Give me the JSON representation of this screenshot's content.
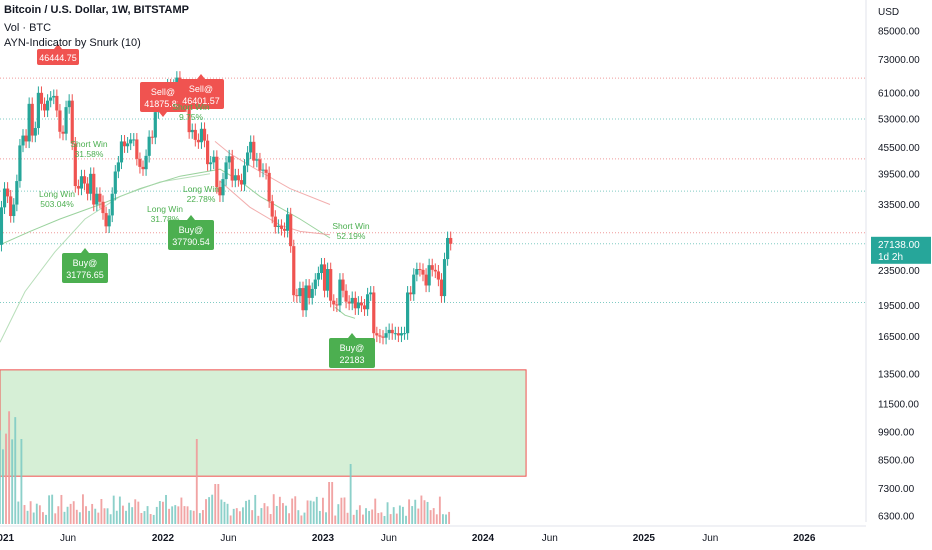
{
  "header": {
    "symbol_line": "Bitcoin / U.S. Dollar, 1W, BITSTAMP",
    "volume_line": "Vol · BTC",
    "indicator_line": "AYN-Indicator by Snurk (10)"
  },
  "colors": {
    "up": "#26a69a",
    "down": "#ef5350",
    "buy_label": "#4caf50",
    "sell_label": "#f05350",
    "win_text": "#4caf50",
    "zone_fill": "#d6efd6",
    "zone_border": "#ef5350",
    "price_badge": "#26a69a"
  },
  "price_axis": {
    "unit": "USD",
    "ticks": [
      "85000.00",
      "73000.00",
      "61000.00",
      "53000.00",
      "45500.00",
      "39500.00",
      "33500.00",
      "23500.00",
      "19500.00",
      "16500.00",
      "13500.00",
      "11500.00",
      "9900.00",
      "8500.00",
      "7300.00",
      "6300.00"
    ],
    "current_price": "27138.00",
    "countdown": "1d 2h"
  },
  "time_axis": {
    "labels": [
      "2021",
      "Jun",
      "2022",
      "Jun",
      "2023",
      "Jun",
      "2024",
      "Jun",
      "2025",
      "Jun",
      "2026"
    ]
  },
  "signals": [
    {
      "kind": "sell",
      "text": "46444.75"
    },
    {
      "kind": "sell",
      "text": "Sell@\n41875.81"
    },
    {
      "kind": "sell",
      "text": "Sell@\n46401.57"
    },
    {
      "kind": "buy",
      "text": "Buy@\n31776.65"
    },
    {
      "kind": "buy",
      "text": "Buy@\n37790.54"
    },
    {
      "kind": "buy",
      "text": "Buy@\n22183"
    },
    {
      "kind": "win",
      "text": "Short Win\n9.75%"
    },
    {
      "kind": "win",
      "text": "Short Win\n31.58%"
    },
    {
      "kind": "win",
      "text": "Long Win\n503.04%"
    },
    {
      "kind": "win",
      "text": "Long Win\n31.78%"
    },
    {
      "kind": "win",
      "text": "Long Win\n22.78%"
    },
    {
      "kind": "win",
      "text": "Short Win\n52.19%"
    }
  ],
  "chart_data": {
    "type": "candlestick",
    "title": "Bitcoin / U.S. Dollar, 1W, BITSTAMP",
    "ylabel": "USD",
    "yscale": "log",
    "ylim": [
      6000,
      90000
    ],
    "xlim": [
      "2020-11-23",
      "2026-06-01"
    ],
    "grid": true,
    "ohlc_weekly": {
      "start": "2020-12-28",
      "open": [
        27000,
        33000,
        36500,
        35000,
        31500,
        33500,
        38000,
        46000,
        48500,
        47000,
        57500,
        48500,
        50500,
        61000,
        57500,
        55500,
        58500,
        59500,
        60000,
        55500,
        49500,
        49000,
        56500,
        58500,
        46500,
        37000,
        36500,
        39000,
        37500,
        35500,
        39500,
        33500,
        35500,
        34000,
        32000,
        29800,
        31600,
        35500,
        40000,
        42000,
        47000,
        45800,
        46500,
        47500,
        47500,
        42800,
        41000,
        40500,
        43500,
        48200,
        48000,
        55000,
        61500,
        62000,
        60700,
        63500,
        57600,
        63400,
        66200,
        61000,
        57200,
        57000,
        49400,
        50000,
        47400,
        46800,
        50300,
        47200,
        41600,
        42000,
        43300,
        36800,
        35200,
        38400,
        42000,
        43400,
        38100,
        39200,
        38200,
        37300,
        41300,
        44300,
        46900,
        42400,
        42700,
        40200,
        40400,
        39700,
        34100,
        31400,
        29700,
        29900,
        29400,
        29100,
        31800,
        26800,
        20600,
        20500,
        21400,
        19000,
        21700,
        20300,
        21300,
        22400,
        23200,
        24300,
        21100,
        23700,
        20000,
        19600,
        19500,
        22400,
        21100,
        19900,
        19700,
        20300,
        19200,
        19800,
        19500,
        19100,
        20700,
        20900,
        16800,
        16600,
        16500,
        16400,
        16800,
        17100,
        16800,
        16800,
        16600,
        16800,
        16800,
        20900,
        20700,
        23000,
        23700,
        23600,
        23000,
        21700,
        24200,
        23600,
        23400,
        22400,
        20500,
        25000,
        28000
      ],
      "close": [
        33000,
        36500,
        35000,
        31500,
        33500,
        38000,
        46000,
        48500,
        47000,
        57500,
        48500,
        50500,
        61000,
        57500,
        55500,
        58500,
        59500,
        60000,
        55500,
        49500,
        49000,
        56500,
        58500,
        46500,
        37000,
        36500,
        39000,
        37500,
        35500,
        39500,
        33500,
        35500,
        34000,
        32000,
        29800,
        31600,
        35500,
        40000,
        42000,
        47000,
        45800,
        46500,
        47500,
        47500,
        42800,
        41000,
        40500,
        43500,
        48200,
        48000,
        55000,
        61500,
        62000,
        60700,
        63500,
        57600,
        63400,
        66200,
        61000,
        57200,
        57000,
        49400,
        50000,
        47400,
        46800,
        50300,
        47200,
        41600,
        42000,
        43300,
        36800,
        35200,
        38400,
        42000,
        43400,
        38100,
        39200,
        38200,
        37300,
        41300,
        44300,
        46900,
        42400,
        42700,
        40200,
        40400,
        39700,
        34100,
        31400,
        29700,
        29900,
        29400,
        29100,
        31800,
        26800,
        20600,
        20500,
        21400,
        19000,
        21700,
        20300,
        21300,
        22400,
        23200,
        24300,
        21100,
        23700,
        20000,
        19600,
        19500,
        22400,
        21100,
        19900,
        19700,
        20300,
        19200,
        19800,
        19500,
        19100,
        20700,
        20900,
        16800,
        16600,
        16500,
        16400,
        16800,
        17100,
        16800,
        16800,
        16600,
        16800,
        16800,
        20900,
        20700,
        23000,
        23700,
        23600,
        23000,
        21700,
        24200,
        23600,
        23400,
        22400,
        20500,
        25000,
        28000,
        27138
      ]
    },
    "volume_note": "relative weekly volume shown as bars in lower pane",
    "horizontal_levels": [
      66000,
      53000,
      42800,
      36000,
      28800,
      27138,
      19800
    ],
    "green_zone": {
      "x_start": "2020-11-23",
      "x_end": "2024-04-08",
      "price_low": 7800,
      "price_high": 13800
    }
  }
}
